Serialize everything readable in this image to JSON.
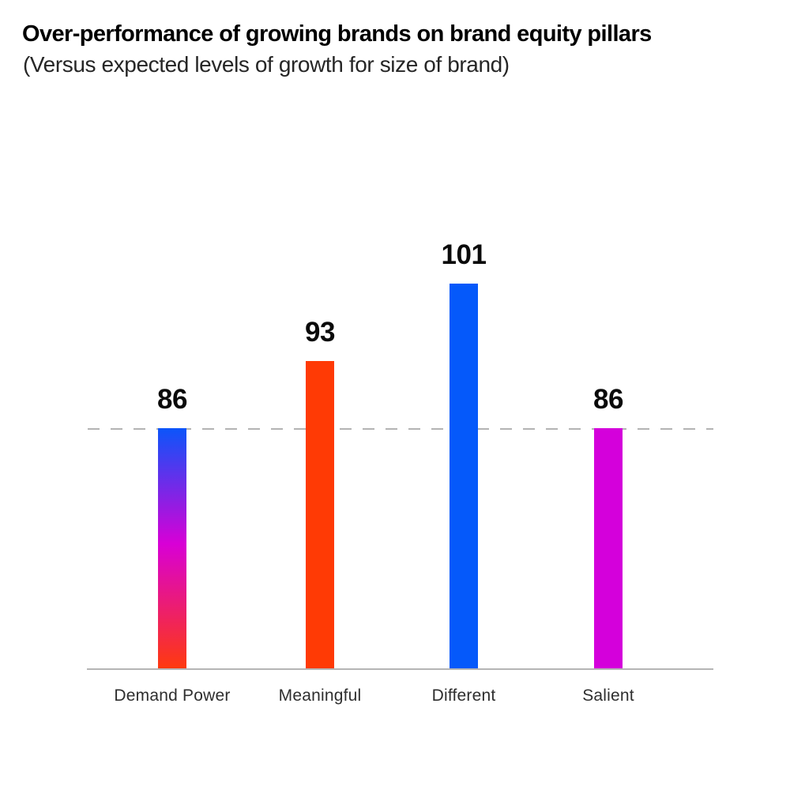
{
  "header": {
    "title": "Over-performance of growing brands on brand equity pillars",
    "subtitle": "(Versus expected levels of growth for size of brand)"
  },
  "chart_data": {
    "type": "bar",
    "title": "Over-performance of growing brands on brand equity pillars",
    "subtitle": "(Versus expected levels of growth for size of brand)",
    "categories": [
      "Demand Power",
      "Meaningful",
      "Different",
      "Salient"
    ],
    "values": [
      86,
      93,
      101,
      86
    ],
    "value_labels": [
      "86",
      "93",
      "101",
      "86"
    ],
    "xlabel": "",
    "ylabel": "",
    "ylim": [
      61,
      105
    ],
    "grid": false,
    "legend": false,
    "reference_line": {
      "value": 86,
      "style": "dashed",
      "color": "#b3b3b3"
    },
    "axis_color": "#b5b5b5",
    "value_label_color": "#0a0a0a",
    "category_label_color": "#2e2e2e",
    "bar_fills": [
      {
        "type": "gradient",
        "stops": [
          {
            "color": "#0b55fa",
            "pos": "0%"
          },
          {
            "color": "#d800d6",
            "pos": "48%"
          },
          {
            "color": "#ff3a0d",
            "pos": "100%"
          }
        ]
      },
      {
        "type": "solid",
        "color": "#ff3a05"
      },
      {
        "type": "solid",
        "color": "#0559fa"
      },
      {
        "type": "solid",
        "color": "#d400db"
      }
    ]
  }
}
